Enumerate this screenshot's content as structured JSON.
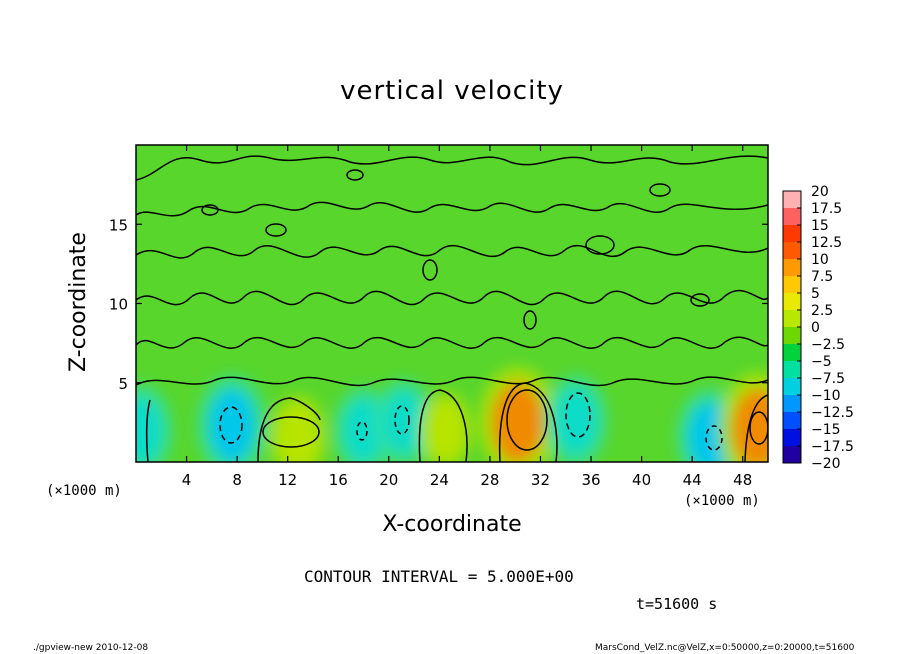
{
  "title": "vertical velocity",
  "xlabel": "X-coordinate",
  "ylabel": "Z-coordinate",
  "x_unit_left": "(×1000 m)",
  "x_unit_right": "(×1000 m)",
  "contour_interval": "CONTOUR INTERVAL = 5.000E+00",
  "time_label": "t=51600 s",
  "footer_left": "./gpview-new   2010-12-08",
  "footer_right": "MarsCond_VelZ.nc@VelZ,x=0:50000,z=0:20000,t=51600",
  "chart_data": {
    "type": "heatmap",
    "title": "vertical velocity",
    "xlabel": "X-coordinate",
    "ylabel": "Z-coordinate",
    "xlim": [
      0,
      50
    ],
    "ylim": [
      0,
      20
    ],
    "x_ticks": [
      4,
      8,
      12,
      16,
      20,
      24,
      28,
      32,
      36,
      40,
      44,
      48
    ],
    "y_ticks": [
      5,
      10,
      15
    ],
    "colorbar": {
      "levels": [
        "20",
        "17.5",
        "15",
        "12.5",
        "10",
        "7.5",
        "5",
        "2.5",
        "0",
        "−2.5",
        "−5",
        "−7.5",
        "−10",
        "−12.5",
        "−15",
        "−17.5",
        "−20"
      ],
      "colors": [
        "#ffb0b0",
        "#ff6060",
        "#ff3a00",
        "#ff5a00",
        "#ff9a00",
        "#ffc800",
        "#e8e800",
        "#b8e800",
        "#6cd800",
        "#00d23c",
        "#00e0a0",
        "#00d0e0",
        "#0098ff",
        "#0050ff",
        "#0010e0",
        "#2000a0",
        "#8000c0"
      ]
    },
    "features": [
      {
        "x": 0.4,
        "z": 2.0,
        "w": -6
      },
      {
        "x": 7.6,
        "z": 2.3,
        "w": -8
      },
      {
        "x": 12.8,
        "z": 1.6,
        "w": 4
      },
      {
        "x": 18.0,
        "z": 2.0,
        "w": -5
      },
      {
        "x": 21.2,
        "z": 2.5,
        "w": -5
      },
      {
        "x": 24.5,
        "z": 2.0,
        "w": 3
      },
      {
        "x": 30.2,
        "z": 2.5,
        "w": 10
      },
      {
        "x": 34.8,
        "z": 2.6,
        "w": -6
      },
      {
        "x": 45.4,
        "z": 1.6,
        "w": -7
      },
      {
        "x": 49.2,
        "z": 2.1,
        "w": 10
      }
    ]
  }
}
